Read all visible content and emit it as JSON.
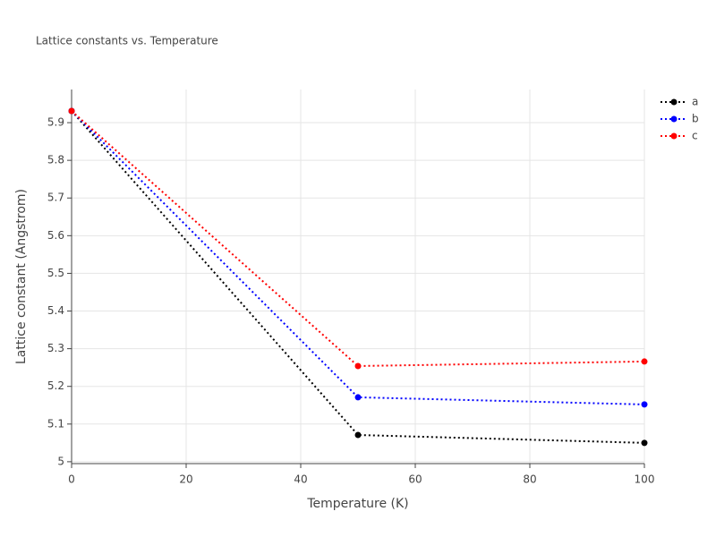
{
  "chart_data": {
    "type": "line",
    "title": "Lattice constants vs. Temperature",
    "x_label": "Temperature (K)",
    "y_label": "Lattice constant (Angstrom)",
    "x": [
      0,
      50,
      100
    ],
    "series": [
      {
        "name": "a",
        "color": "#000000",
        "values": [
          5.931,
          5.071,
          5.05
        ]
      },
      {
        "name": "b",
        "color": "#0000ff",
        "values": [
          5.931,
          5.171,
          5.152
        ]
      },
      {
        "name": "c",
        "color": "#ff0000",
        "values": [
          5.931,
          5.254,
          5.266
        ]
      }
    ],
    "xlim": [
      0,
      100
    ],
    "xticks": [
      0,
      20,
      40,
      60,
      80,
      100
    ],
    "ylim": [
      4.995,
      5.988
    ],
    "yticks": [
      5,
      5.1,
      5.2,
      5.3,
      5.4,
      5.5,
      5.6,
      5.7,
      5.8,
      5.9
    ],
    "grid": true,
    "legend": "top-right"
  }
}
